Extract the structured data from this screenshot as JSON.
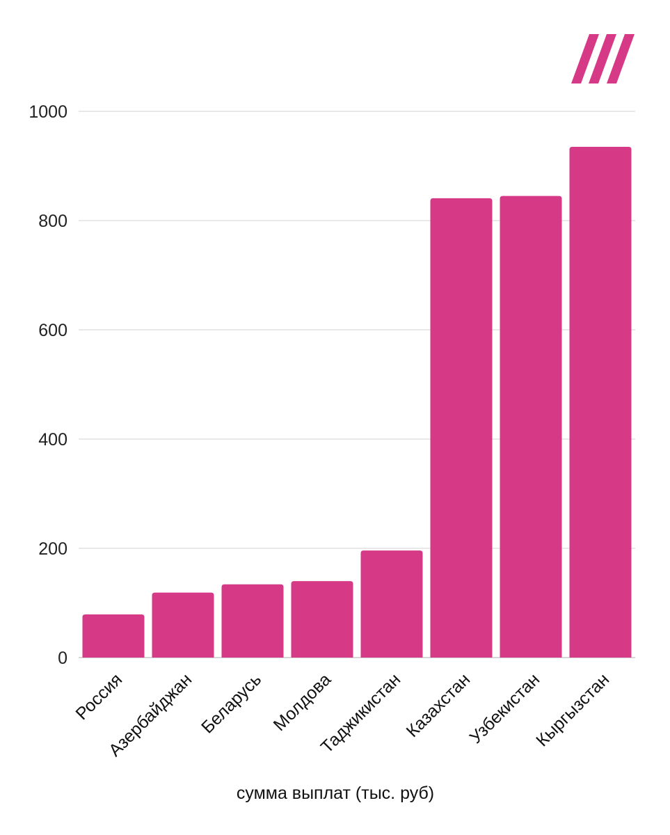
{
  "chart_data": {
    "type": "bar",
    "title": "",
    "xlabel": "сумма выплат (тыс. руб)",
    "ylabel": "",
    "categories": [
      "Россия",
      "Азербайджан",
      "Беларусь",
      "Молдова",
      "Таджикистан",
      "Казахстан",
      "Узбекистан",
      "Кыргызстан"
    ],
    "values": [
      79,
      119,
      134,
      140,
      196,
      841,
      845,
      935
    ],
    "ylim": [
      0,
      1000
    ],
    "yticks": [
      0,
      200,
      400,
      600,
      800,
      1000
    ],
    "grid": true,
    "legend": "none"
  },
  "colors": {
    "bar": "#d63a87",
    "logo": "#d63a87"
  },
  "logo": {
    "icon": "three-slash-logo-icon"
  }
}
